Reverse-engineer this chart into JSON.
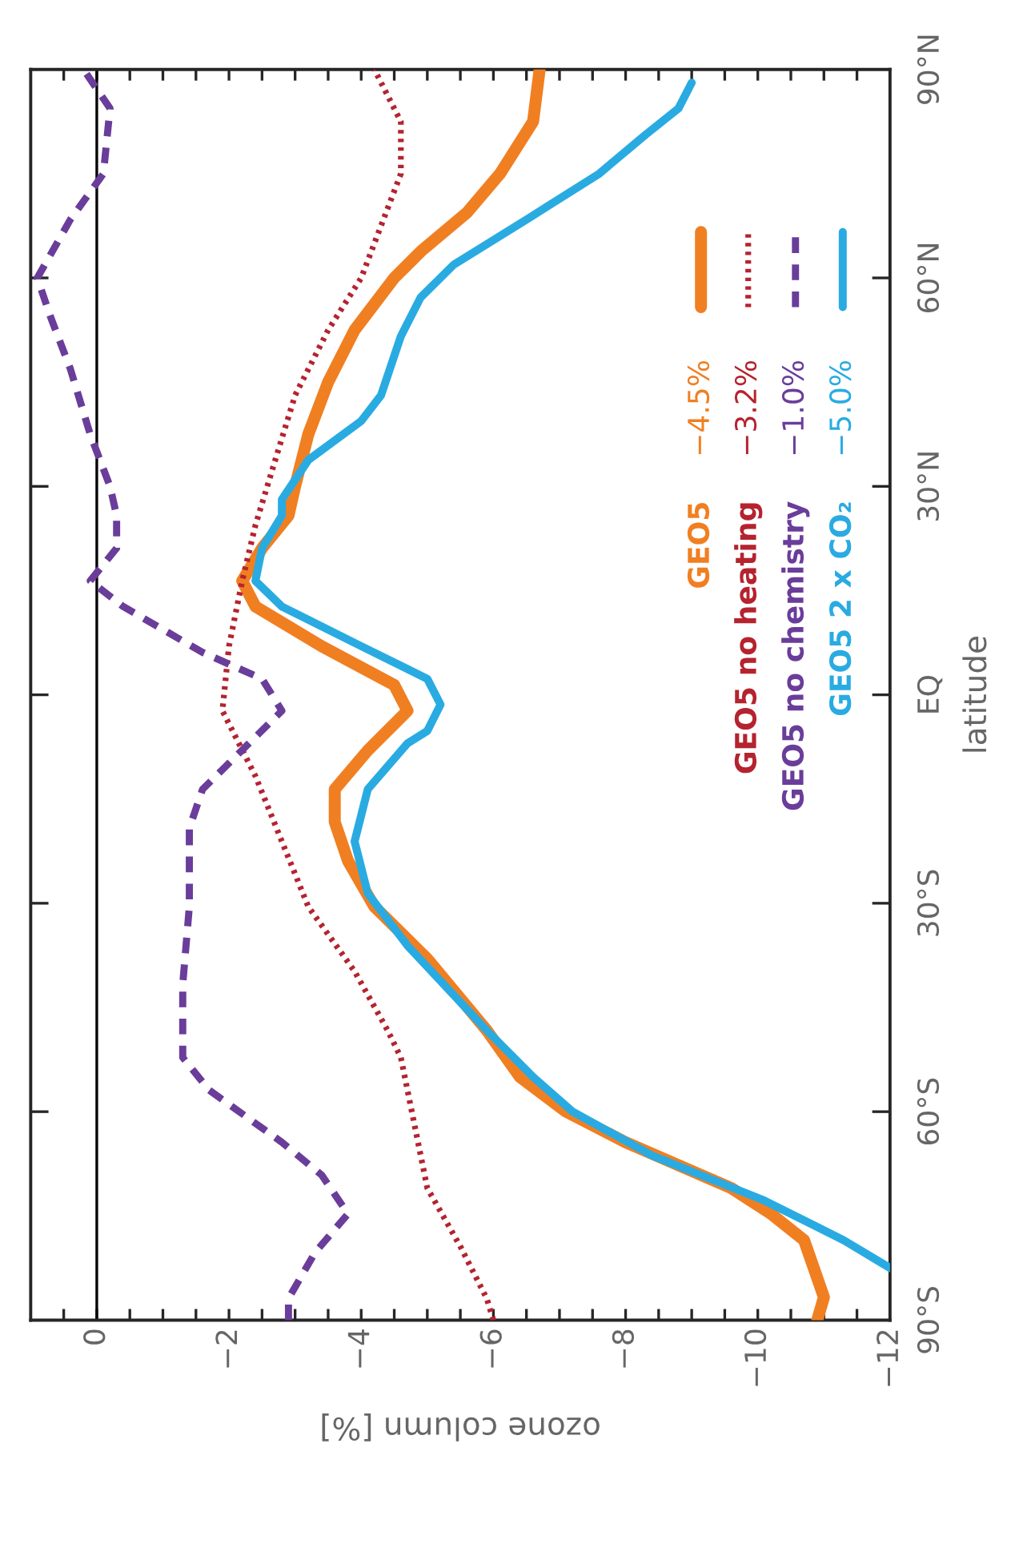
{
  "chart_data": {
    "type": "line",
    "xlabel": "ozone column [%]",
    "ylabel": "latitude",
    "ylim": [
      -90,
      90
    ],
    "yticks": [
      {
        "value": -90,
        "label": "90°S"
      },
      {
        "value": -60,
        "label": "60°S"
      },
      {
        "value": -30,
        "label": "30°S"
      },
      {
        "value": 0,
        "label": "EQ"
      },
      {
        "value": 30,
        "label": "30°N"
      },
      {
        "value": 60,
        "label": "60°N"
      },
      {
        "value": 90,
        "label": "90°N"
      }
    ],
    "xlim": [
      1,
      -12
    ],
    "xticks": [
      {
        "value": 0.5,
        "label": null
      },
      {
        "value": 0,
        "label": "0"
      },
      {
        "value": -0.5,
        "label": null
      },
      {
        "value": -1,
        "label": null
      },
      {
        "value": -1.5,
        "label": null
      },
      {
        "value": -2,
        "label": "−2"
      },
      {
        "value": -2.5,
        "label": null
      },
      {
        "value": -3,
        "label": null
      },
      {
        "value": -3.5,
        "label": null
      },
      {
        "value": -4,
        "label": "−4"
      },
      {
        "value": -4.5,
        "label": null
      },
      {
        "value": -5,
        "label": null
      },
      {
        "value": -5.5,
        "label": null
      },
      {
        "value": -6,
        "label": "−6"
      },
      {
        "value": -6.5,
        "label": null
      },
      {
        "value": -7,
        "label": null
      },
      {
        "value": -7.5,
        "label": null
      },
      {
        "value": -8,
        "label": "−8"
      },
      {
        "value": -8.5,
        "label": null
      },
      {
        "value": -9,
        "label": null
      },
      {
        "value": -9.5,
        "label": null
      },
      {
        "value": -10,
        "label": "−10"
      },
      {
        "value": -10.5,
        "label": null
      },
      {
        "value": -11,
        "label": null
      },
      {
        "value": -11.5,
        "label": null
      },
      {
        "value": -12,
        "label": "−12"
      }
    ],
    "ref_lines": [
      {
        "axis": "x",
        "value": 0,
        "color": "#000000"
      }
    ],
    "grid": false,
    "legend": "right",
    "annotations": [
      "−4.5%",
      "−3.2%",
      "−1.0%",
      "−5.0%"
    ],
    "series": [
      {
        "name": "GEO5",
        "color": "#f07f22",
        "line_style": "solid",
        "values": [
          -90,
          -86.7,
          -78.5,
          -74.7,
          -71,
          -64.4,
          -60,
          -55,
          -48.3,
          -38,
          -30.5,
          -23.9,
          -18.3,
          -13.6,
          -8,
          -2.3,
          1.4,
          7,
          12.7,
          16.4,
          21.1,
          25.8,
          30,
          37.5,
          45,
          52.5,
          60,
          63.8,
          69.4,
          75,
          82.5,
          90
        ],
        "x": [
          -10.9,
          -11.0,
          -10.7,
          -10.2,
          -9.6,
          -8.0,
          -7.1,
          -6.4,
          -5.9,
          -5.0,
          -4.2,
          -3.8,
          -3.6,
          -3.6,
          -4.1,
          -4.7,
          -4.5,
          -3.4,
          -2.4,
          -2.2,
          -2.5,
          -2.9,
          -3.0,
          -3.2,
          -3.5,
          -3.9,
          -4.5,
          -4.9,
          -5.6,
          -6.1,
          -6.6,
          -6.7
        ]
      },
      {
        "name": "GEO5 no heating",
        "color": "#b5232f",
        "line_style": "dotted",
        "values": [
          -90,
          -86.9,
          -79.4,
          -71,
          -61.6,
          -52.2,
          -48.3,
          -39.8,
          -30.5,
          -21.1,
          -11.7,
          -2.3,
          7,
          16.4,
          24.4,
          33.8,
          43.1,
          52.5,
          60,
          67.5,
          75,
          82.5,
          90
        ],
        "x": [
          -6.0,
          -5.9,
          -5.5,
          -5.0,
          -4.8,
          -4.6,
          -4.4,
          -3.9,
          -3.2,
          -2.8,
          -2.4,
          -1.9,
          -2.0,
          -2.2,
          -2.4,
          -2.7,
          -3.0,
          -3.5,
          -4.0,
          -4.3,
          -4.6,
          -4.6,
          -4.2
        ]
      },
      {
        "name": "GEO5 no chemistry",
        "color": "#6a3d9a",
        "line_style": "dashed",
        "values": [
          -90,
          -86.9,
          -80.3,
          -74.7,
          -69.1,
          -64.4,
          -56.9,
          -52.2,
          -48.3,
          -41.7,
          -30.5,
          -19.2,
          -13.6,
          -7,
          -2.3,
          2.3,
          6.1,
          12.7,
          16.4,
          21.1,
          25.8,
          30,
          37.5,
          46.9,
          54.4,
          60,
          68.4,
          75,
          84.4,
          90
        ],
        "x": [
          -2.9,
          -2.9,
          -3.3,
          -3.8,
          -3.4,
          -2.8,
          -1.7,
          -1.3,
          -1.3,
          -1.3,
          -1.4,
          -1.4,
          -1.6,
          -2.3,
          -2.8,
          -2.5,
          -1.6,
          -0.4,
          0.1,
          -0.3,
          -0.3,
          -0.2,
          0.1,
          0.4,
          0.7,
          0.9,
          0.4,
          -0.1,
          -0.2,
          0.2
        ]
      },
      {
        "name": "GEO5 2 x CO₂",
        "color": "#29abe2",
        "line_style": "solid",
        "values": [
          -82.5,
          -78.5,
          -72.8,
          -66.3,
          -60,
          -55,
          -48.3,
          -36.1,
          -28.6,
          -21.1,
          -13.6,
          -7,
          -5.2,
          -1.4,
          2.3,
          7,
          12.7,
          16.4,
          21.1,
          25.8,
          28.1,
          33.8,
          39.4,
          43.1,
          51.6,
          57.2,
          61.9,
          68.4,
          75,
          80.6,
          84.4,
          88.1
        ],
        "x": [
          -12.0,
          -11.3,
          -10.1,
          -8.4,
          -7.2,
          -6.6,
          -5.9,
          -4.7,
          -4.1,
          -3.9,
          -4.1,
          -4.7,
          -5.0,
          -5.2,
          -5.0,
          -4.0,
          -2.8,
          -2.4,
          -2.5,
          -2.8,
          -2.8,
          -3.2,
          -4.0,
          -4.3,
          -4.6,
          -4.9,
          -5.4,
          -6.5,
          -7.6,
          -8.3,
          -8.8,
          -9.0
        ]
      }
    ]
  }
}
